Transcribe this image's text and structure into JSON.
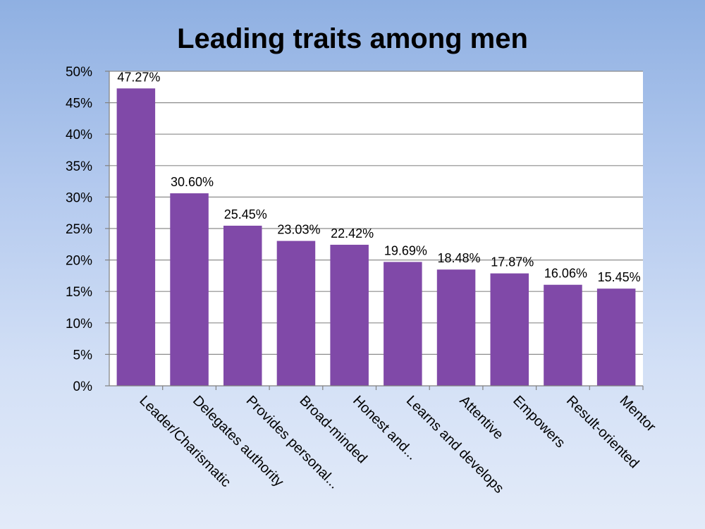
{
  "chart_data": {
    "type": "bar",
    "title": "Leading traits among men",
    "xlabel": "",
    "ylabel": "",
    "categories": [
      "Leader/Charismatic",
      "Delegates authority",
      "Provides personal...",
      "Broad-minded",
      "Honest and...",
      "Learns and develops",
      "Attentive",
      "Empowers",
      "Result-oriented",
      "Mentor"
    ],
    "values": [
      47.27,
      30.6,
      25.45,
      23.03,
      22.42,
      19.69,
      18.48,
      17.87,
      16.06,
      15.45
    ],
    "data_labels": [
      "47.27%",
      "30.60%",
      "25.45%",
      "23.03%",
      "22.42%",
      "19.69%",
      "18.48%",
      "17.87%",
      "16.06%",
      "15.45%"
    ],
    "ylim": [
      0,
      50
    ],
    "y_ticks": [
      "0%",
      "5%",
      "10%",
      "15%",
      "20%",
      "25%",
      "30%",
      "35%",
      "40%",
      "45%",
      "50%"
    ],
    "grid": true,
    "legend": "none",
    "bar_color": "#8049a8",
    "plot_background": "#ffffff",
    "grid_color": "#8c8c8c"
  }
}
